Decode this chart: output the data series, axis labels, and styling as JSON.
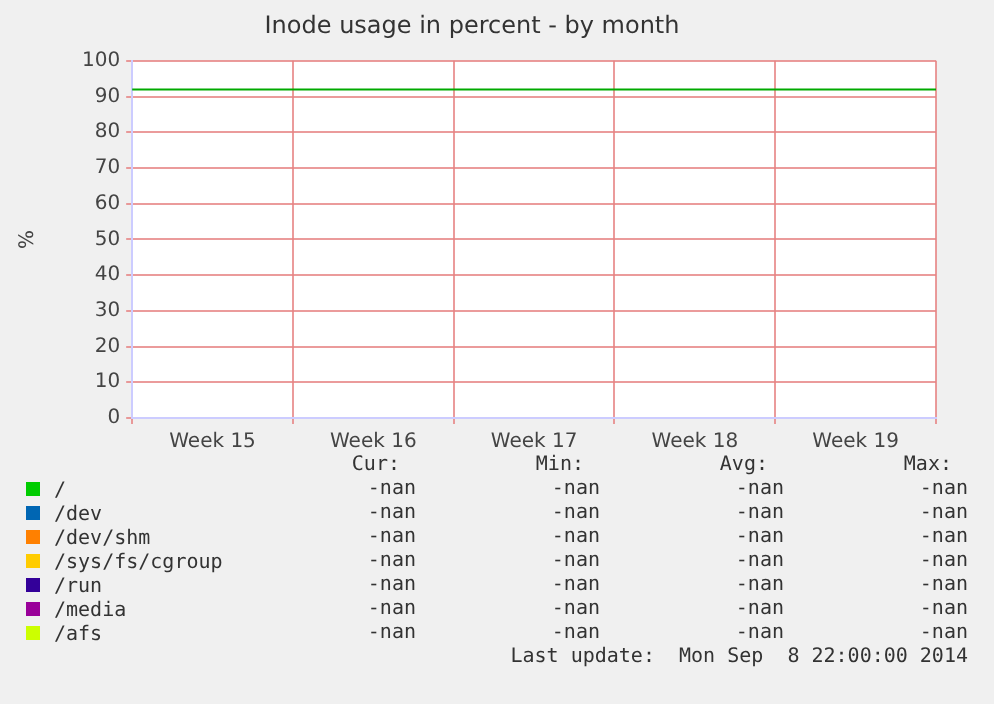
{
  "chart_data": [
    {
      "type": "line",
      "title": "Inode usage in percent - by month",
      "ylabel": "%",
      "categories": [
        "Week 15",
        "Week 16",
        "Week 17",
        "Week 18",
        "Week 19"
      ],
      "ylim": [
        0,
        100
      ],
      "yticks": [
        0,
        10,
        20,
        30,
        40,
        50,
        60,
        70,
        80,
        90,
        100
      ],
      "grid": true,
      "legend": "bottom",
      "ref_lines": [
        {
          "axis": "y",
          "value": 92,
          "color": "#00aa00"
        }
      ],
      "series": [
        {
          "name": "/",
          "color": "#00cc00",
          "values": [
            null,
            null,
            null,
            null,
            null
          ]
        },
        {
          "name": "/dev",
          "color": "#0066b3",
          "values": [
            null,
            null,
            null,
            null,
            null
          ]
        },
        {
          "name": "/dev/shm",
          "color": "#ff8000",
          "values": [
            null,
            null,
            null,
            null,
            null
          ]
        },
        {
          "name": "/sys/fs/cgroup",
          "color": "#ffcc00",
          "values": [
            null,
            null,
            null,
            null,
            null
          ]
        },
        {
          "name": "/run",
          "color": "#330099",
          "values": [
            null,
            null,
            null,
            null,
            null
          ]
        },
        {
          "name": "/media",
          "color": "#990099",
          "values": [
            null,
            null,
            null,
            null,
            null
          ]
        },
        {
          "name": "/afs",
          "color": "#ccff00",
          "values": [
            null,
            null,
            null,
            null,
            null
          ]
        }
      ]
    },
    {
      "type": "other",
      "annotations": [
        "Cur:",
        "Min:",
        "Avg:",
        "Max:",
        "-nan",
        "-nan",
        "-nan",
        "-nan",
        "-nan",
        "-nan",
        "-nan",
        "-nan",
        "-nan",
        "-nan",
        "-nan",
        "-nan",
        "-nan",
        "-nan",
        "-nan",
        "-nan",
        "-nan",
        "-nan",
        "-nan",
        "-nan",
        "-nan",
        "-nan",
        "-nan",
        "-nan",
        "-nan",
        "-nan",
        "-nan",
        "-nan",
        "Last update:  Mon Sep  8 22:00:00 2014"
      ]
    }
  ]
}
